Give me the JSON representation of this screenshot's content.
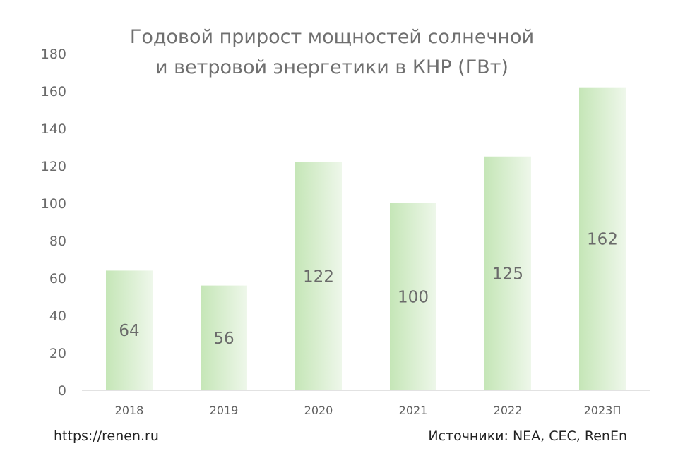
{
  "chart_data": {
    "type": "bar",
    "title": "Годовой прирост мощностей солнечной и ветровой энергетики в КНР (ГВт)",
    "title_lines": [
      "Годовой прирост мощностей солнечной",
      "и ветровой энергетики в КНР (ГВт)"
    ],
    "categories": [
      "2018",
      "2019",
      "2020",
      "2021",
      "2022",
      "2023П"
    ],
    "values": [
      64,
      56,
      122,
      100,
      125,
      162
    ],
    "data_labels": [
      "64",
      "56",
      "122",
      "100",
      "125",
      "162"
    ],
    "xlabel": "",
    "ylabel": "",
    "ylim": [
      0,
      180
    ],
    "y_ticks": [
      0,
      20,
      40,
      60,
      80,
      100,
      120,
      140,
      160,
      180
    ],
    "grid": false,
    "bar_color": "#c5e6b7",
    "bar_color_light": "#eef7ea",
    "axis_color": "#d9d9d9"
  },
  "footer": {
    "source_url": "https://renen.ru",
    "sources": "Источники: NEA, CEC, RenEn"
  }
}
